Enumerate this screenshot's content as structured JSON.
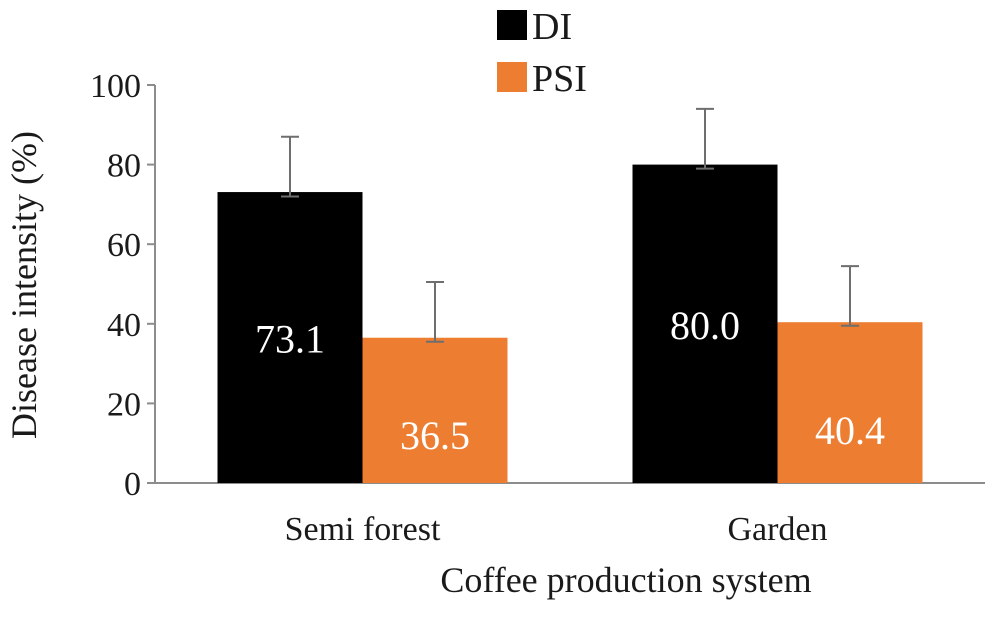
{
  "chart_data": {
    "type": "bar",
    "title": "",
    "xlabel": "Coffee production system",
    "ylabel": "Disease intensity (%)",
    "categories": [
      "Semi forest",
      "Garden"
    ],
    "series": [
      {
        "name": "DI",
        "color": "#000000",
        "values": [
          73.1,
          80.0
        ],
        "labels": [
          "73.1",
          "80.0"
        ],
        "error_upper": [
          87.0,
          94.0
        ],
        "error_lower": [
          72.0,
          79.0
        ]
      },
      {
        "name": "PSI",
        "color": "#ed7d31",
        "values": [
          36.5,
          40.4
        ],
        "labels": [
          "36.5",
          "40.4"
        ],
        "error_upper": [
          50.5,
          54.5
        ],
        "error_lower": [
          35.5,
          39.5
        ]
      }
    ],
    "ylim": [
      0,
      100
    ],
    "yticks": [
      "0",
      "20",
      "40",
      "60",
      "80",
      "100"
    ],
    "grid": false,
    "legend_position": "top-center",
    "error_bars": true
  }
}
